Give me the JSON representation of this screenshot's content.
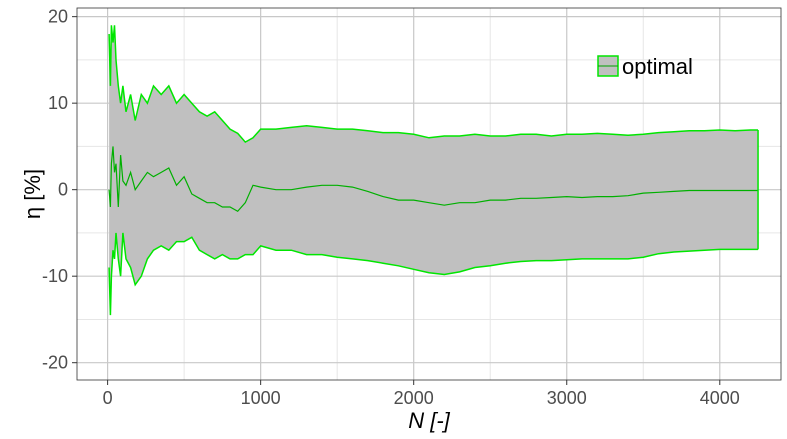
{
  "chart_data": {
    "type": "area",
    "xlabel": "N [-]",
    "ylabel": "η [%]",
    "xlim": [
      -200,
      4400
    ],
    "ylim": [
      -22,
      21
    ],
    "x_ticks": [
      0,
      1000,
      2000,
      3000,
      4000
    ],
    "x_tick_labels": [
      "0",
      "1000",
      "2000",
      "3000",
      "4000"
    ],
    "y_ticks": [
      -20,
      -10,
      0,
      10,
      20
    ],
    "y_tick_labels": [
      "-20",
      "-10",
      "0",
      "10",
      "20"
    ],
    "x_minor_ticks": [
      500,
      1500,
      2500,
      3500
    ],
    "y_minor_ticks": [
      -15,
      -5,
      5,
      15
    ],
    "grid": true,
    "legend": {
      "position": "top-right",
      "label": "optimal"
    },
    "colors": {
      "line": "#00e600",
      "fill": "#c0c0c0",
      "grid_major": "#c8c8c8",
      "grid_minor": "#e6e6e6",
      "panel_border": "#333333"
    },
    "series": [
      {
        "name": "optimal",
        "x": [
          10,
          18,
          25,
          35,
          45,
          55,
          70,
          85,
          100,
          120,
          150,
          180,
          220,
          260,
          300,
          350,
          400,
          450,
          500,
          550,
          600,
          650,
          700,
          750,
          800,
          850,
          900,
          950,
          1000,
          1100,
          1200,
          1300,
          1400,
          1500,
          1600,
          1700,
          1800,
          1900,
          2000,
          2100,
          2200,
          2300,
          2400,
          2500,
          2600,
          2700,
          2800,
          2900,
          3000,
          3100,
          3200,
          3300,
          3400,
          3500,
          3600,
          3700,
          3800,
          3900,
          4000,
          4100,
          4200,
          4250
        ],
        "upper": [
          18,
          12,
          19,
          17,
          19,
          15,
          12,
          10,
          12,
          9,
          11,
          8,
          11,
          10,
          12,
          11,
          12,
          10,
          11,
          10,
          9,
          8.5,
          9,
          8,
          7,
          6.5,
          5.5,
          6,
          7,
          7,
          7.2,
          7.4,
          7.2,
          7,
          7,
          6.8,
          6.6,
          6.6,
          6.4,
          6,
          6.2,
          6.2,
          6.4,
          6.2,
          6.2,
          6.4,
          6.4,
          6.2,
          6.4,
          6.4,
          6.5,
          6.4,
          6.3,
          6.4,
          6.6,
          6.7,
          6.8,
          6.8,
          6.9,
          6.8,
          6.9,
          6.9
        ],
        "mean": [
          0,
          -2,
          3,
          5,
          2,
          3,
          -2,
          4,
          1,
          0.5,
          2,
          0,
          1,
          2,
          1.5,
          2,
          2.5,
          0.5,
          1.5,
          -0.5,
          -1,
          -1.5,
          -1.5,
          -2,
          -2,
          -2.5,
          -1.5,
          0.5,
          0.3,
          0,
          0,
          0.3,
          0.5,
          0.5,
          0.3,
          -0.2,
          -0.8,
          -1.2,
          -1.2,
          -1.5,
          -1.8,
          -1.5,
          -1.5,
          -1.2,
          -1.2,
          -1,
          -1,
          -0.9,
          -0.8,
          -0.9,
          -0.8,
          -0.8,
          -0.7,
          -0.4,
          -0.3,
          -0.2,
          -0.1,
          -0.1,
          -0.1,
          -0.1,
          -0.1,
          -0.1
        ],
        "lower": [
          -9,
          -14.5,
          -10,
          -7,
          -8,
          -5,
          -8,
          -10,
          -5,
          -8,
          -9,
          -11,
          -10,
          -8,
          -7,
          -6.5,
          -7,
          -6,
          -6,
          -5.5,
          -7,
          -7.5,
          -8,
          -7.5,
          -8,
          -8,
          -7.5,
          -7.5,
          -6.5,
          -7,
          -7,
          -7.5,
          -7.5,
          -7.8,
          -8,
          -8.2,
          -8.5,
          -8.8,
          -9.2,
          -9.6,
          -9.8,
          -9.5,
          -9,
          -8.8,
          -8.5,
          -8.3,
          -8.2,
          -8.2,
          -8.1,
          -8,
          -8,
          -8,
          -8,
          -7.8,
          -7.4,
          -7.2,
          -7.1,
          -7,
          -6.9,
          -6.9,
          -6.9,
          -6.9
        ]
      }
    ]
  }
}
